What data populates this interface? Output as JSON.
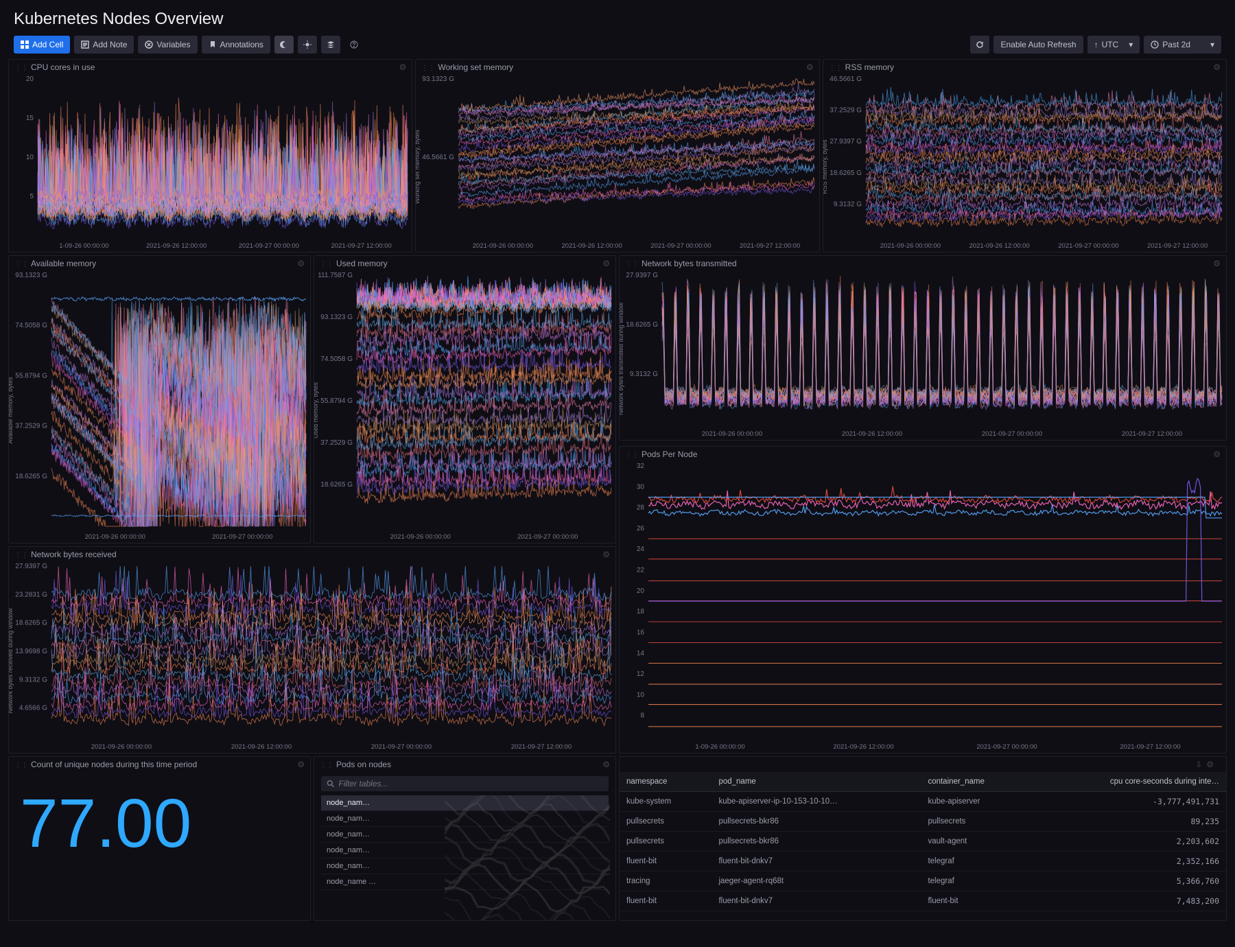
{
  "page": {
    "title": "Kubernetes Nodes Overview"
  },
  "toolbar": {
    "add_cell": "Add Cell",
    "add_note": "Add Note",
    "variables": "Variables",
    "annotations": "Annotations",
    "auto_refresh": "Enable Auto Refresh",
    "tz": "UTC",
    "range": "Past 2d"
  },
  "charts": {
    "cpu": {
      "title": "CPU cores in use",
      "yticks": [
        "5",
        "10",
        "15",
        "20"
      ],
      "xticks": [
        "1-09-26 00:00:00",
        "2021-09-26 12:00:00",
        "2021-09-27 00:00:00",
        "2021-09-27 12:00:00"
      ]
    },
    "wsmem": {
      "title": "Working set memory",
      "ylabel": "Working set memory, bytes",
      "yticks": [
        "46.5661 G",
        "93.1323 G"
      ],
      "xticks": [
        "2021-09-26 00:00:00",
        "2021-09-26 12:00:00",
        "2021-09-27 00:00:00",
        "2021-09-27 12:00:00"
      ]
    },
    "rss": {
      "title": "RSS memory",
      "ylabel": "RSS memory, bytes",
      "yticks": [
        "9.3132 G",
        "18.6265 G",
        "27.9397 G",
        "37.2529 G",
        "46.5661 G"
      ],
      "xticks": [
        "2021-09-26 00:00:00",
        "2021-09-26 12:00:00",
        "2021-09-27 00:00:00",
        "2021-09-27 12:00:00"
      ]
    },
    "avail": {
      "title": "Available memory",
      "ylabel": "Available memory, bytes",
      "yticks": [
        "18.6265 G",
        "37.2529 G",
        "55.8794 G",
        "74.5058 G",
        "93.1323 G"
      ],
      "xticks": [
        "2021-09-26 00:00:00",
        "2021-09-27 00:00:00"
      ]
    },
    "used": {
      "title": "Used memory",
      "ylabel": "Used memory, bytes",
      "yticks": [
        "18.6265 G",
        "37.2529 G",
        "55.8794 G",
        "74.5058 G",
        "93.1323 G",
        "111.7587 G"
      ],
      "xticks": [
        "2021-09-26 00:00:00",
        "2021-09-27 00:00:00"
      ]
    },
    "nettx": {
      "title": "Network bytes transmitted",
      "ylabel": "Network bytes transmitted during window",
      "yticks": [
        "9.3132 G",
        "18.6265 G",
        "27.9397 G"
      ],
      "xticks": [
        "2021-09-26 00:00:00",
        "2021-09-26 12:00:00",
        "2021-09-27 00:00:00",
        "2021-09-27 12:00:00"
      ]
    },
    "pods": {
      "title": "Pods Per Node",
      "yticks": [
        "8",
        "10",
        "12",
        "14",
        "16",
        "18",
        "20",
        "22",
        "24",
        "26",
        "28",
        "30",
        "32"
      ],
      "xticks": [
        "1-09-26 00:00:00",
        "2021-09-26 12:00:00",
        "2021-09-27 00:00:00",
        "2021-09-27 12:00:00"
      ]
    },
    "netrx": {
      "title": "Network bytes received",
      "ylabel": "Network bytes received during window",
      "yticks": [
        "4.6566 G",
        "9.3132 G",
        "13.9698 G",
        "18.6265 G",
        "23.2831 G",
        "27.9397 G"
      ],
      "xticks": [
        "2021-09-26 00:00:00",
        "2021-09-26 12:00:00",
        "2021-09-27 00:00:00",
        "2021-09-27 12:00:00"
      ]
    }
  },
  "unique_nodes": {
    "title": "Count of unique nodes during this time period",
    "value": "77.00"
  },
  "pods_on_nodes": {
    "title": "Pods on nodes",
    "filter_placeholder": "Filter tables...",
    "items": [
      "node_nam…",
      "node_nam…",
      "node_nam…",
      "node_nam…",
      "node_nam…",
      "node_name …"
    ]
  },
  "table": {
    "columns": [
      "namespace",
      "pod_name",
      "container_name",
      "cpu core-seconds during inte…"
    ],
    "rows": [
      [
        "kube-system",
        "kube-apiserver-ip-10-153-10-10…",
        "kube-apiserver",
        "-3,777,491,731"
      ],
      [
        "pullsecrets",
        "pullsecrets-bkr86",
        "pullsecrets",
        "89,235"
      ],
      [
        "pullsecrets",
        "pullsecrets-bkr86",
        "vault-agent",
        "2,203,602"
      ],
      [
        "fluent-bit",
        "fluent-bit-dnkv7",
        "telegraf",
        "2,352,166"
      ],
      [
        "tracing",
        "jaeger-agent-rq68t",
        "telegraf",
        "5,366,760"
      ],
      [
        "fluent-bit",
        "fluent-bit-dnkv7",
        "fluent-bit",
        "7,483,200"
      ]
    ]
  },
  "colors": {
    "series": [
      "#ff8e53",
      "#7e5bef",
      "#ff6ac1",
      "#5aa9ff",
      "#c678dd",
      "#e06c75",
      "#61afef",
      "#ff8e53",
      "#d19a66",
      "#9d7cd8",
      "#f783ac",
      "#4dabf7",
      "#b377e0",
      "#ff9e64"
    ],
    "pods_red": "#e74c3c",
    "pods_orange": "#ff8e53",
    "pods_blue": "#5aa9ff",
    "pods_pink": "#ff6ac1",
    "pods_purple": "#7e5bef",
    "grid": "#202028"
  }
}
